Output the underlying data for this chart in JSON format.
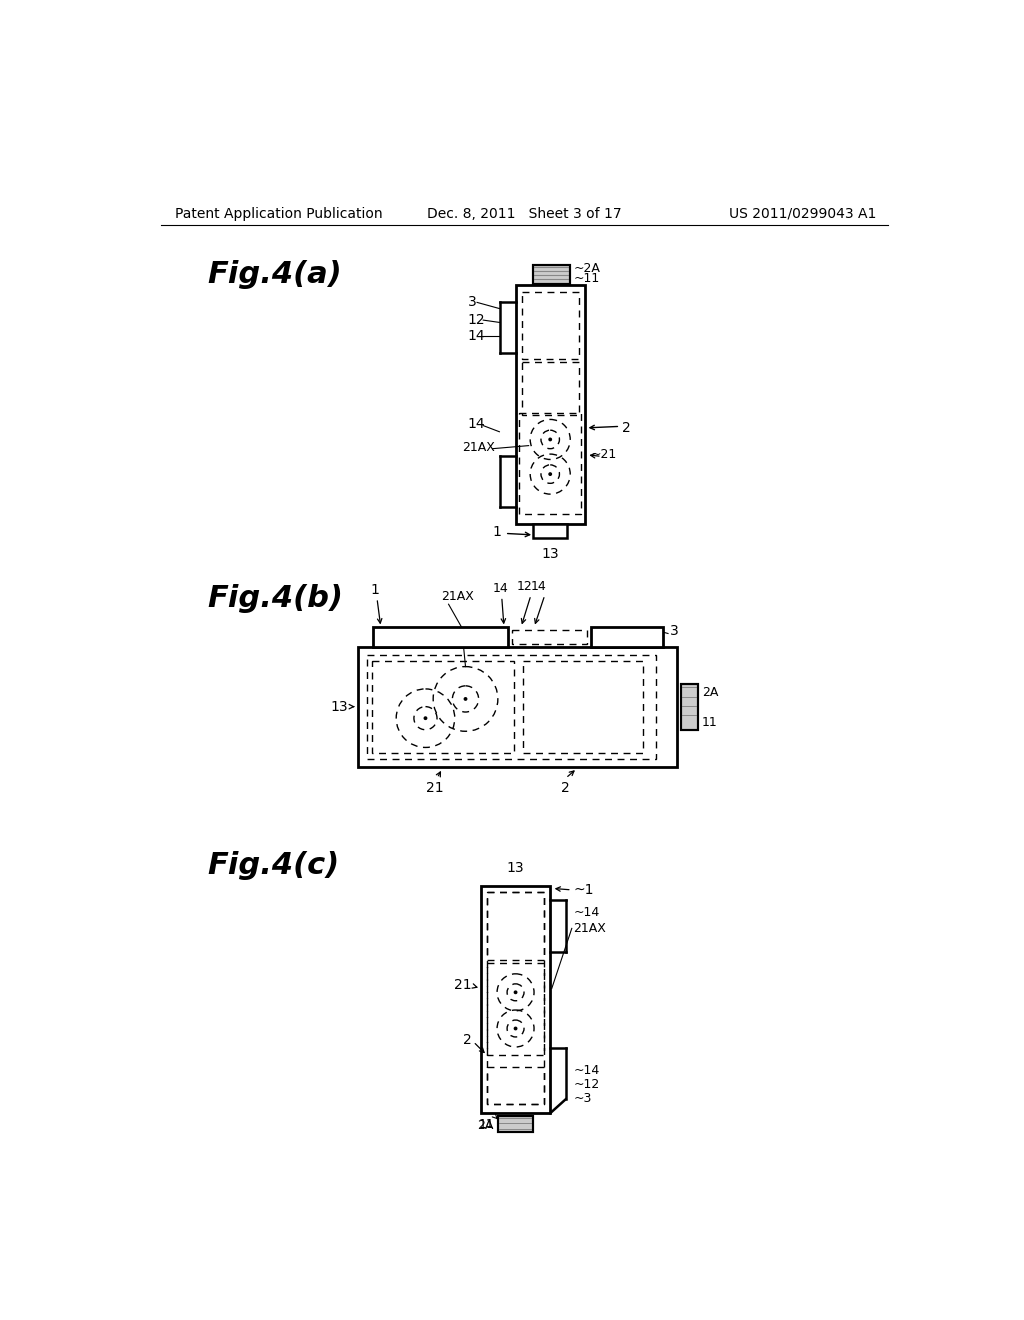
{
  "background_color": "#ffffff",
  "header_left": "Patent Application Publication",
  "header_center": "Dec. 8, 2011   Sheet 3 of 17",
  "header_right": "US 2011/0299043 A1",
  "fig4a_label": "Fig.4(a)",
  "fig4b_label": "Fig.4(b)",
  "fig4c_label": "Fig.4(c)"
}
